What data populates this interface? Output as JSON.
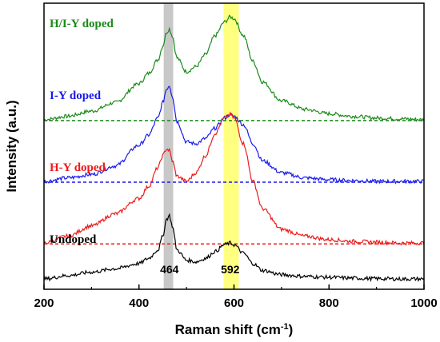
{
  "chart_data": {
    "type": "line",
    "xlabel": "Raman shift (cm",
    "xlabel_sup": "-1",
    "xlabel_end": ")",
    "ylabel": "Intensity (a.u.)",
    "xlim": [
      200,
      1000
    ],
    "xticks": [
      "200",
      "400",
      "600",
      "800",
      "1000"
    ],
    "highlight_bands": [
      {
        "from": 452,
        "to": 472,
        "color": "#c8c8c8"
      },
      {
        "from": 578,
        "to": 610,
        "color": "#ffff80"
      }
    ],
    "peak_labels": [
      {
        "text": "464",
        "x": 464
      },
      {
        "text": "592",
        "x": 592
      }
    ],
    "series": [
      {
        "name": "H/I-Y doped",
        "color": "#1a8a1a",
        "baseline": 0.935,
        "dashed_baseline": true,
        "x": [
          200,
          250,
          300,
          350,
          400,
          420,
          440,
          450,
          458,
          464,
          470,
          480,
          500,
          520,
          540,
          560,
          580,
          592,
          600,
          620,
          640,
          660,
          700,
          750,
          800,
          850,
          900,
          950,
          1000
        ],
        "y": [
          0.94,
          0.96,
          0.99,
          1.04,
          1.15,
          1.21,
          1.29,
          1.37,
          1.45,
          1.47,
          1.43,
          1.3,
          1.22,
          1.25,
          1.32,
          1.43,
          1.51,
          1.54,
          1.53,
          1.43,
          1.28,
          1.16,
          1.05,
          1.0,
          0.975,
          0.96,
          0.95,
          0.945,
          0.94
        ]
      },
      {
        "name": "I-Y doped",
        "color": "#1a1aee",
        "baseline": 0.575,
        "dashed_baseline": true,
        "x": [
          200,
          250,
          300,
          350,
          400,
          420,
          440,
          450,
          458,
          464,
          470,
          480,
          500,
          520,
          540,
          560,
          580,
          592,
          600,
          620,
          640,
          660,
          700,
          750,
          800,
          850,
          900,
          950,
          1000
        ],
        "y": [
          0.58,
          0.6,
          0.62,
          0.67,
          0.79,
          0.85,
          0.95,
          1.04,
          1.12,
          1.14,
          1.08,
          0.93,
          0.81,
          0.8,
          0.83,
          0.89,
          0.95,
          0.97,
          0.96,
          0.91,
          0.8,
          0.7,
          0.63,
          0.6,
          0.59,
          0.585,
          0.58,
          0.58,
          0.58
        ]
      },
      {
        "name": "H-Y doped",
        "color": "#ee1a1a",
        "baseline": 0.215,
        "dashed_baseline": true,
        "x": [
          200,
          250,
          300,
          350,
          400,
          420,
          440,
          450,
          458,
          464,
          470,
          480,
          500,
          520,
          540,
          560,
          580,
          592,
          600,
          620,
          640,
          660,
          700,
          750,
          800,
          850,
          900,
          950,
          1000
        ],
        "y": [
          0.22,
          0.26,
          0.32,
          0.39,
          0.48,
          0.55,
          0.66,
          0.73,
          0.77,
          0.76,
          0.7,
          0.61,
          0.58,
          0.63,
          0.73,
          0.86,
          0.95,
          0.97,
          0.95,
          0.8,
          0.58,
          0.42,
          0.3,
          0.26,
          0.24,
          0.23,
          0.225,
          0.22,
          0.22
        ]
      },
      {
        "name": "Undoped",
        "color": "#000000",
        "baseline": 0.0,
        "dashed_baseline": false,
        "x": [
          200,
          250,
          300,
          350,
          400,
          420,
          440,
          450,
          458,
          464,
          470,
          480,
          500,
          520,
          540,
          560,
          580,
          592,
          600,
          620,
          640,
          660,
          700,
          750,
          800,
          850,
          900,
          950,
          1000
        ],
        "y": [
          0.01,
          0.03,
          0.05,
          0.07,
          0.1,
          0.13,
          0.18,
          0.26,
          0.36,
          0.38,
          0.32,
          0.18,
          0.12,
          0.11,
          0.13,
          0.17,
          0.21,
          0.22,
          0.21,
          0.16,
          0.1,
          0.06,
          0.035,
          0.025,
          0.02,
          0.015,
          0.012,
          0.01,
          0.01
        ]
      }
    ]
  }
}
